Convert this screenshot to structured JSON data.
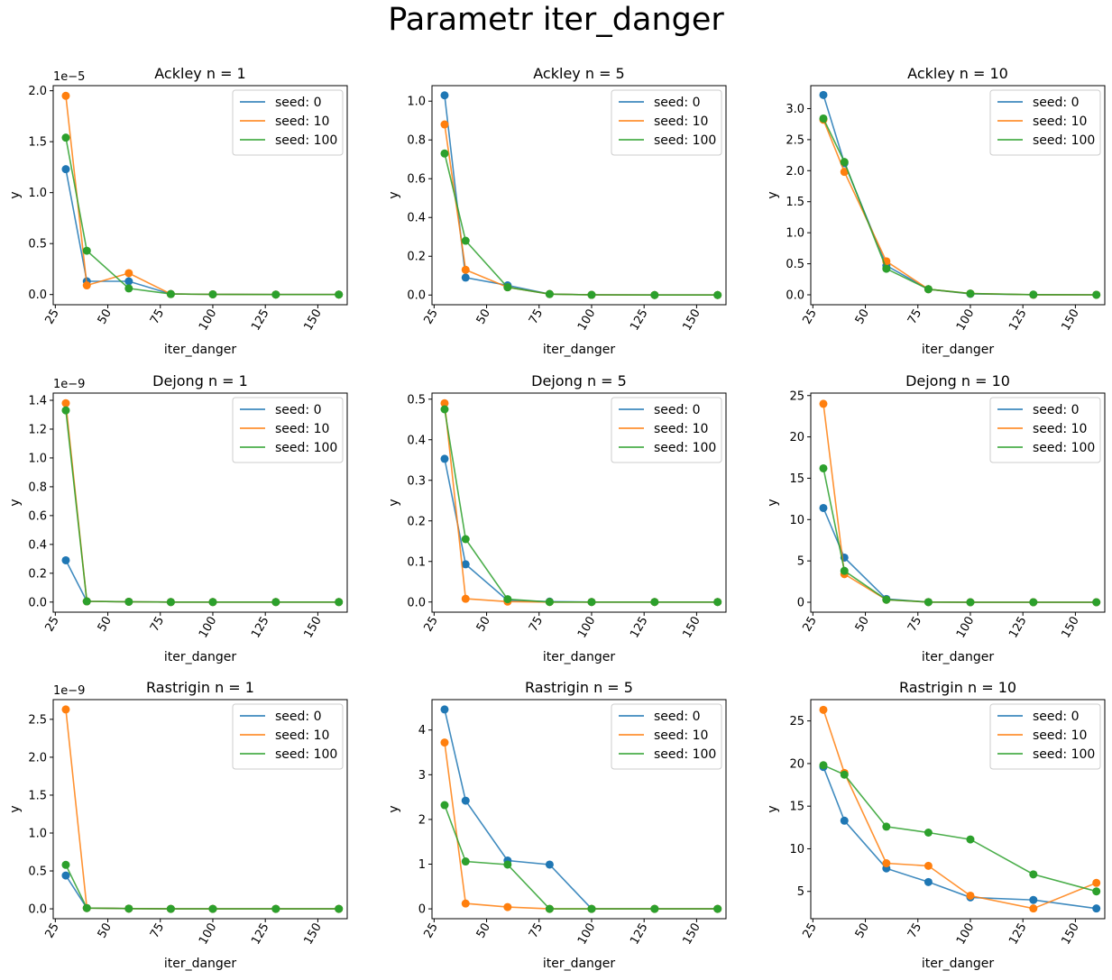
{
  "figure": {
    "title": "Parametr iter_danger"
  },
  "colors": {
    "seed_0": "#1f77b4",
    "seed_10": "#ff7f0e",
    "seed_100": "#2ca02c"
  },
  "chart_data": [
    {
      "type": "line",
      "title": "Ackley n = 1",
      "xlabel": "iter_danger",
      "ylabel": "y",
      "x": [
        30,
        40,
        60,
        80,
        100,
        130,
        160
      ],
      "xticks": [
        25,
        50,
        75,
        100,
        125,
        150
      ],
      "xlim": [
        24,
        164
      ],
      "yticks": [
        0.0,
        0.5,
        1.0,
        1.5,
        2.0
      ],
      "ytick_labels": [
        "0.0",
        "0.5",
        "1.0",
        "1.5",
        "2.0"
      ],
      "ylim": [
        -0.1,
        2.05
      ],
      "offset_text": "1e−5",
      "legend": "upper right",
      "grid": false,
      "series": [
        {
          "name": "seed: 0",
          "values": [
            1.23,
            0.13,
            0.13,
            0.005,
            0.002,
            0.0,
            0.0
          ]
        },
        {
          "name": "seed: 10",
          "values": [
            1.95,
            0.09,
            0.21,
            0.005,
            0.002,
            0.0,
            0.0
          ]
        },
        {
          "name": "seed: 100",
          "values": [
            1.54,
            0.43,
            0.06,
            0.005,
            0.002,
            0.0,
            0.0
          ]
        }
      ]
    },
    {
      "type": "line",
      "title": "Ackley n = 5",
      "xlabel": "iter_danger",
      "ylabel": "y",
      "x": [
        30,
        40,
        60,
        80,
        100,
        130,
        160
      ],
      "xticks": [
        25,
        50,
        75,
        100,
        125,
        150
      ],
      "xlim": [
        24,
        164
      ],
      "yticks": [
        0.0,
        0.2,
        0.4,
        0.6,
        0.8,
        1.0
      ],
      "ytick_labels": [
        "0.0",
        "0.2",
        "0.4",
        "0.6",
        "0.8",
        "1.0"
      ],
      "ylim": [
        -0.05,
        1.08
      ],
      "legend": "upper right",
      "grid": false,
      "series": [
        {
          "name": "seed: 0",
          "values": [
            1.03,
            0.09,
            0.05,
            0.005,
            0.001,
            0.0,
            0.0
          ]
        },
        {
          "name": "seed: 10",
          "values": [
            0.88,
            0.13,
            0.04,
            0.005,
            0.001,
            0.0,
            0.0
          ]
        },
        {
          "name": "seed: 100",
          "values": [
            0.73,
            0.28,
            0.04,
            0.005,
            0.001,
            0.0,
            0.0
          ]
        }
      ]
    },
    {
      "type": "line",
      "title": "Ackley n = 10",
      "xlabel": "iter_danger",
      "ylabel": "y",
      "x": [
        30,
        40,
        60,
        80,
        100,
        130,
        160
      ],
      "xticks": [
        25,
        50,
        75,
        100,
        125,
        150
      ],
      "xlim": [
        24,
        164
      ],
      "yticks": [
        0.0,
        0.5,
        1.0,
        1.5,
        2.0,
        2.5,
        3.0
      ],
      "ytick_labels": [
        "0.0",
        "0.5",
        "1.0",
        "1.5",
        "2.0",
        "2.5",
        "3.0"
      ],
      "ylim": [
        -0.16,
        3.37
      ],
      "legend": "upper right",
      "grid": false,
      "series": [
        {
          "name": "seed: 0",
          "values": [
            3.22,
            2.12,
            0.47,
            0.09,
            0.015,
            0.001,
            0.0
          ]
        },
        {
          "name": "seed: 10",
          "values": [
            2.82,
            1.98,
            0.54,
            0.09,
            0.02,
            0.001,
            0.0
          ]
        },
        {
          "name": "seed: 100",
          "values": [
            2.84,
            2.14,
            0.42,
            0.09,
            0.02,
            0.003,
            0.0
          ]
        }
      ]
    },
    {
      "type": "line",
      "title": "Dejong n = 1",
      "xlabel": "iter_danger",
      "ylabel": "y",
      "x": [
        30,
        40,
        60,
        80,
        100,
        130,
        160
      ],
      "xticks": [
        25,
        50,
        75,
        100,
        125,
        150
      ],
      "xlim": [
        24,
        164
      ],
      "yticks": [
        0.0,
        0.2,
        0.4,
        0.6,
        0.8,
        1.0,
        1.2,
        1.4
      ],
      "ytick_labels": [
        "0.0",
        "0.2",
        "0.4",
        "0.6",
        "0.8",
        "1.0",
        "1.2",
        "1.4"
      ],
      "ylim": [
        -0.07,
        1.45
      ],
      "offset_text": "1e−9",
      "legend": "upper right",
      "grid": false,
      "series": [
        {
          "name": "seed: 0",
          "values": [
            0.29,
            0.005,
            0.002,
            0.0,
            0.0,
            0.0,
            0.0
          ]
        },
        {
          "name": "seed: 10",
          "values": [
            1.38,
            0.005,
            0.002,
            0.0,
            0.0,
            0.0,
            0.0
          ]
        },
        {
          "name": "seed: 100",
          "values": [
            1.33,
            0.005,
            0.002,
            0.0,
            0.0,
            0.0,
            0.0
          ]
        }
      ]
    },
    {
      "type": "line",
      "title": "Dejong n = 5",
      "xlabel": "iter_danger",
      "ylabel": "y",
      "x": [
        30,
        40,
        60,
        80,
        100,
        130,
        160
      ],
      "xticks": [
        25,
        50,
        75,
        100,
        125,
        150
      ],
      "xlim": [
        24,
        164
      ],
      "yticks": [
        0.0,
        0.1,
        0.2,
        0.3,
        0.4,
        0.5
      ],
      "ytick_labels": [
        "0.0",
        "0.1",
        "0.2",
        "0.3",
        "0.4",
        "0.5"
      ],
      "ylim": [
        -0.025,
        0.515
      ],
      "legend": "upper right",
      "grid": false,
      "series": [
        {
          "name": "seed: 0",
          "values": [
            0.353,
            0.093,
            0.004,
            0.001,
            0.0,
            0.0,
            0.0
          ]
        },
        {
          "name": "seed: 10",
          "values": [
            0.49,
            0.008,
            0.001,
            0.0,
            0.0,
            0.0,
            0.0
          ]
        },
        {
          "name": "seed: 100",
          "values": [
            0.475,
            0.155,
            0.007,
            0.0,
            0.0,
            0.0,
            0.0
          ]
        }
      ]
    },
    {
      "type": "line",
      "title": "Dejong n = 10",
      "xlabel": "iter_danger",
      "ylabel": "y",
      "x": [
        30,
        40,
        60,
        80,
        100,
        130,
        160
      ],
      "xticks": [
        25,
        50,
        75,
        100,
        125,
        150
      ],
      "xlim": [
        24,
        164
      ],
      "yticks": [
        0,
        5,
        10,
        15,
        20,
        25
      ],
      "ytick_labels": [
        "0",
        "5",
        "10",
        "15",
        "20",
        "25"
      ],
      "ylim": [
        -1.2,
        25.3
      ],
      "legend": "upper right",
      "grid": false,
      "series": [
        {
          "name": "seed: 0",
          "values": [
            11.4,
            5.4,
            0.4,
            0.02,
            0.0,
            0.0,
            0.0
          ]
        },
        {
          "name": "seed: 10",
          "values": [
            24.0,
            3.4,
            0.3,
            0.02,
            0.0,
            0.0,
            0.0
          ]
        },
        {
          "name": "seed: 100",
          "values": [
            16.2,
            3.8,
            0.3,
            0.02,
            0.0,
            0.0,
            0.0
          ]
        }
      ]
    },
    {
      "type": "line",
      "title": "Rastrigin n = 1",
      "xlabel": "iter_danger",
      "ylabel": "y",
      "x": [
        30,
        40,
        60,
        80,
        100,
        130,
        160
      ],
      "xticks": [
        25,
        50,
        75,
        100,
        125,
        150
      ],
      "xlim": [
        24,
        164
      ],
      "yticks": [
        0.0,
        0.5,
        1.0,
        1.5,
        2.0,
        2.5
      ],
      "ytick_labels": [
        "0.0",
        "0.5",
        "1.0",
        "1.5",
        "2.0",
        "2.5"
      ],
      "ylim": [
        -0.13,
        2.76
      ],
      "offset_text": "1e−9",
      "legend": "upper right",
      "grid": false,
      "series": [
        {
          "name": "seed: 0",
          "values": [
            0.44,
            0.01,
            0.003,
            0.0,
            0.0,
            0.0,
            0.0
          ]
        },
        {
          "name": "seed: 10",
          "values": [
            2.63,
            0.01,
            0.003,
            0.0,
            0.0,
            0.0,
            0.0
          ]
        },
        {
          "name": "seed: 100",
          "values": [
            0.58,
            0.01,
            0.003,
            0.0,
            0.0,
            0.0,
            0.0
          ]
        }
      ]
    },
    {
      "type": "line",
      "title": "Rastrigin n = 5",
      "xlabel": "iter_danger",
      "ylabel": "y",
      "x": [
        30,
        40,
        60,
        80,
        100,
        130,
        160
      ],
      "xticks": [
        25,
        50,
        75,
        100,
        125,
        150
      ],
      "xlim": [
        24,
        164
      ],
      "yticks": [
        0,
        1,
        2,
        3,
        4
      ],
      "ytick_labels": [
        "0",
        "1",
        "2",
        "3",
        "4"
      ],
      "ylim": [
        -0.22,
        4.68
      ],
      "legend": "upper right",
      "grid": false,
      "series": [
        {
          "name": "seed: 0",
          "values": [
            4.46,
            2.42,
            1.08,
            0.99,
            0.0,
            0.0,
            0.0
          ]
        },
        {
          "name": "seed: 10",
          "values": [
            3.72,
            0.12,
            0.04,
            0.0,
            0.0,
            0.0,
            0.0
          ]
        },
        {
          "name": "seed: 100",
          "values": [
            2.32,
            1.06,
            0.99,
            0.0,
            0.0,
            0.0,
            0.0
          ]
        }
      ]
    },
    {
      "type": "line",
      "title": "Rastrigin n = 10",
      "xlabel": "iter_danger",
      "ylabel": "y",
      "x": [
        30,
        40,
        60,
        80,
        100,
        130,
        160
      ],
      "xticks": [
        25,
        50,
        75,
        100,
        125,
        150
      ],
      "xlim": [
        24,
        164
      ],
      "yticks": [
        5,
        10,
        15,
        20,
        25
      ],
      "ytick_labels": [
        "5",
        "10",
        "15",
        "20",
        "25"
      ],
      "ylim": [
        1.8,
        27.5
      ],
      "legend": "upper right",
      "grid": false,
      "series": [
        {
          "name": "seed: 0",
          "values": [
            19.6,
            13.3,
            7.7,
            6.1,
            4.3,
            4.0,
            3.0
          ]
        },
        {
          "name": "seed: 10",
          "values": [
            26.3,
            18.9,
            8.3,
            8.0,
            4.5,
            3.0,
            6.0
          ]
        },
        {
          "name": "seed: 100",
          "values": [
            19.8,
            18.7,
            12.6,
            11.9,
            11.1,
            7.0,
            5.0
          ]
        }
      ]
    }
  ]
}
